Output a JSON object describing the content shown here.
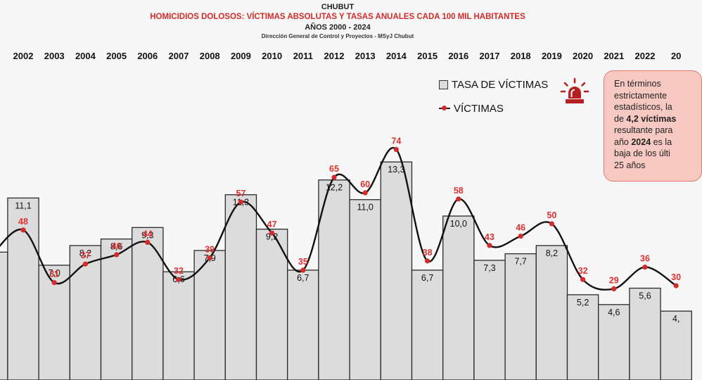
{
  "header": {
    "province": "CHUBUT",
    "title": "HOMICIDIOS DOLOSOS: VÍCTIMAS ABSOLUTAS Y TASAS ANUALES CADA 100 MIL HABITANTES",
    "period": "AÑOS 2000 - 2024",
    "source": "Dirección General de Control y Proyectos - MSyJ Chubut"
  },
  "legend": {
    "rate_label": "TASA DE VÍCTIMAS",
    "victims_label": "VÍCTIMAS"
  },
  "icons": {
    "alert": "siren-icon"
  },
  "note": {
    "line1": "En términos",
    "line2": "estrictamente",
    "line3": "estadísticos, la",
    "line4_pre": "de ",
    "line4_bold": "4,2 víctimas",
    "line5": "resultante para",
    "line6_pre": "año ",
    "line6_bold": "2024",
    "line6_post": " es la",
    "line7": "baja de los últi",
    "line8": "25 años"
  },
  "colors": {
    "bar_fill": "#dcdcdc",
    "bar_stroke": "#2a2a2a",
    "line": "#111111",
    "marker": "#d42a2a",
    "victims_text": "#e03030",
    "note_bg": "#f7c9c2",
    "note_border": "#e07a6e"
  },
  "chart_data": {
    "type": "bar",
    "categories": [
      "2002",
      "2003",
      "2004",
      "2005",
      "2006",
      "2007",
      "2008",
      "2009",
      "2010",
      "2011",
      "2012",
      "2013",
      "2014",
      "2015",
      "2016",
      "2017",
      "2018",
      "2019",
      "2020",
      "2021",
      "2022"
    ],
    "partial_categories": {
      "left": "1",
      "right": "20"
    },
    "series": [
      {
        "name": "TASA DE VÍCTIMAS",
        "type": "bar",
        "values": [
          11.1,
          7.0,
          8.2,
          8.6,
          9.3,
          6.6,
          7.9,
          11.3,
          9.2,
          6.7,
          12.2,
          11.0,
          13.3,
          6.7,
          10.0,
          7.3,
          7.7,
          8.2,
          5.2,
          4.6,
          5.6
        ],
        "labels": [
          "11,1",
          "7,0",
          "8,2",
          "8,6",
          "9,3",
          "6,6",
          "7,9",
          "11,3",
          "9,2",
          "6,7",
          "12,2",
          "11,0",
          "13,3",
          "6,7",
          "10,0",
          "7,3",
          "7,7",
          "8,2",
          "5,2",
          "4,6",
          "5,6"
        ]
      },
      {
        "name": "VÍCTIMAS",
        "type": "line",
        "values": [
          48,
          31,
          37,
          40,
          44,
          32,
          39,
          57,
          47,
          35,
          65,
          60,
          74,
          38,
          58,
          43,
          46,
          50,
          32,
          29,
          36
        ],
        "labels": [
          "48",
          "31",
          "37",
          "40",
          "44",
          "32",
          "39",
          "57",
          "47",
          "35",
          "65",
          "60",
          "74",
          "38",
          "58",
          "43",
          "46",
          "50",
          "32",
          "29",
          "36"
        ]
      }
    ],
    "partial_edges": {
      "left_bar_rate": 7.8,
      "left_victims": 40,
      "right_bar_rate": 4.2,
      "right_rate_label": "4,",
      "right_victims": 30,
      "right_victims_label": "30"
    },
    "title": "HOMICIDIOS DOLOSOS: VÍCTIMAS ABSOLUTAS Y TASAS ANUALES CADA 100 MIL HABITANTES",
    "grid": false,
    "legend_position": "top-right"
  }
}
